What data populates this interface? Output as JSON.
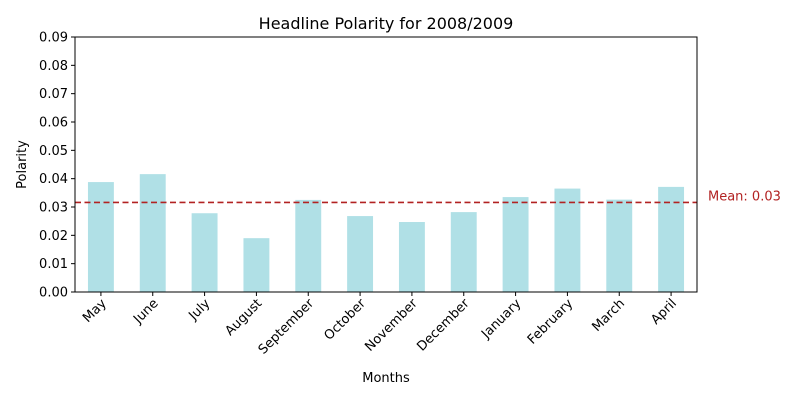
{
  "chart_data": {
    "type": "bar",
    "title": "Headline Polarity for 2008/2009",
    "xlabel": "Months",
    "ylabel": "Polarity",
    "categories": [
      "May",
      "June",
      "July",
      "August",
      "September",
      "October",
      "November",
      "December",
      "January",
      "February",
      "March",
      "April"
    ],
    "values": [
      0.0388,
      0.0416,
      0.0278,
      0.019,
      0.0325,
      0.0268,
      0.0247,
      0.0282,
      0.0335,
      0.0365,
      0.0326,
      0.0371
    ],
    "ylim": [
      0,
      0.09
    ],
    "yticks": [
      "0.00",
      "0.01",
      "0.02",
      "0.03",
      "0.04",
      "0.05",
      "0.06",
      "0.07",
      "0.08",
      "0.09"
    ],
    "bar_color": "#b0e0e6",
    "mean_line": {
      "value": 0.0316,
      "label": "Mean: 0.03",
      "color": "#b22222",
      "style": "dashed"
    },
    "grid": false,
    "legend": "none"
  }
}
